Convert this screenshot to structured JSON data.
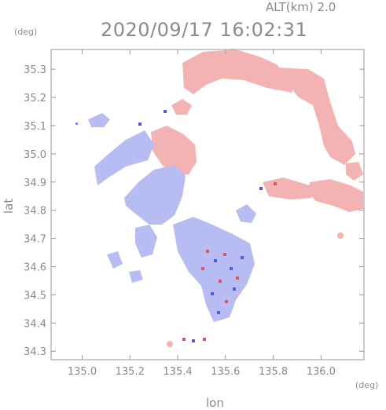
{
  "header": {
    "altitude_label": "ALT(km) 2.0",
    "timestamp": "2020/09/17 16:02:31"
  },
  "axes": {
    "x_label": "lon",
    "y_label": "lat",
    "x_unit": "(deg)",
    "y_unit": "(deg)",
    "x_range": [
      134.87,
      136.18
    ],
    "y_range": [
      34.27,
      35.37
    ],
    "x_ticks": [
      "135.0",
      "135.2",
      "135.4",
      "135.6",
      "135.8",
      "136.0"
    ],
    "y_ticks": [
      "34.3",
      "34.4",
      "34.5",
      "34.6",
      "34.7",
      "34.8",
      "34.9",
      "35.0",
      "35.1",
      "35.2",
      "35.3"
    ]
  },
  "colors": {
    "approaching": "#b4b9f2",
    "receding": "#f3b2b2",
    "axis": "#999999"
  }
}
